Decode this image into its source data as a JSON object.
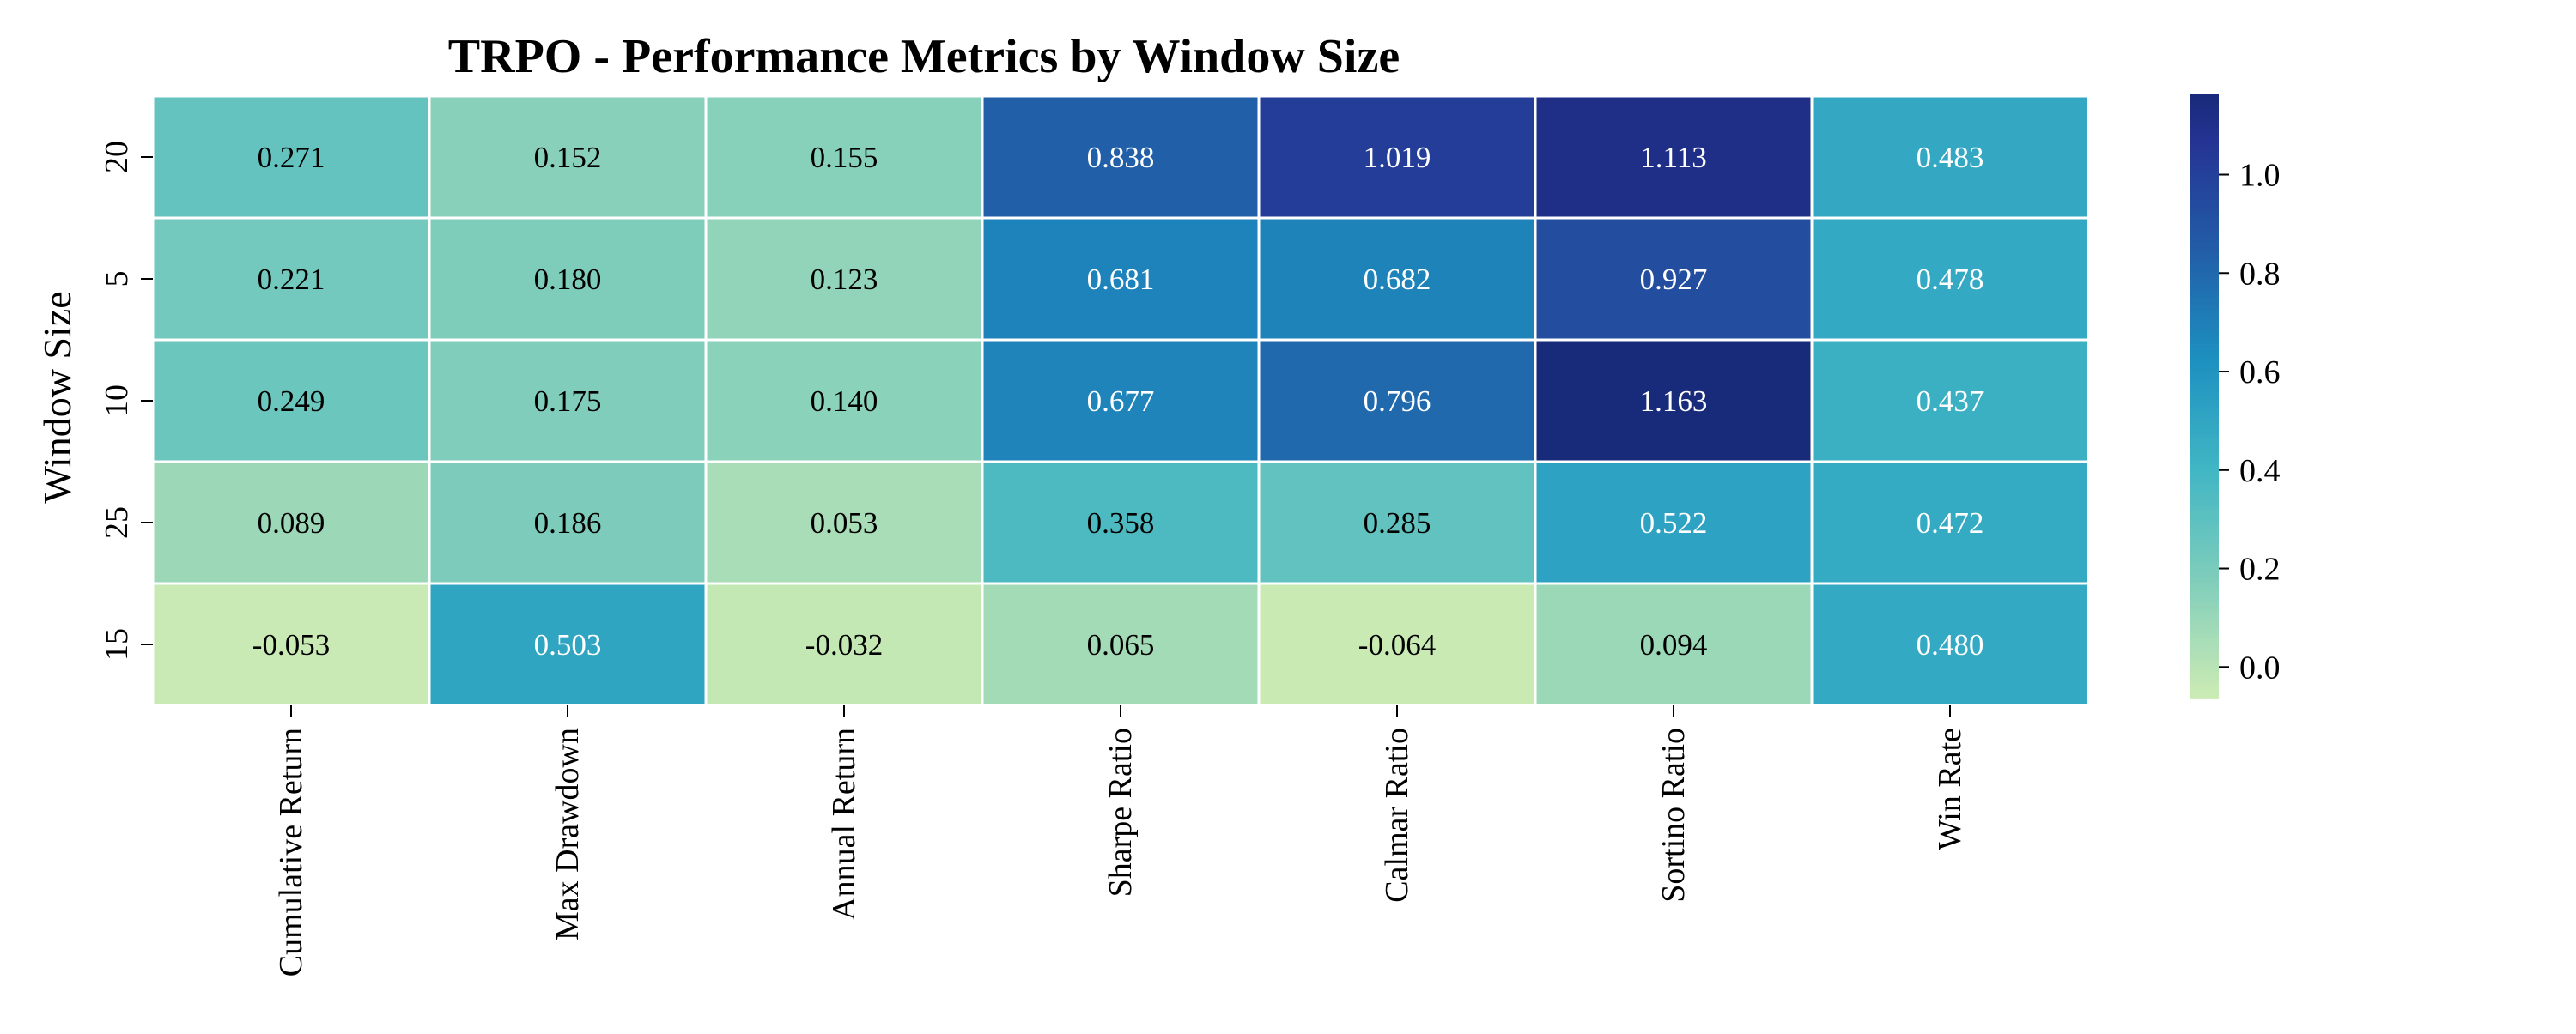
{
  "chart_data": {
    "type": "heatmap",
    "title": "TRPO - Performance Metrics by Window Size",
    "ylabel": "Window Size",
    "xlabel": "",
    "x_categories": [
      "Cumulative Return",
      "Max Drawdown",
      "Annual Return",
      "Sharpe Ratio",
      "Calmar Ratio",
      "Sortino Ratio",
      "Win Rate"
    ],
    "y_categories": [
      "20",
      "5",
      "10",
      "25",
      "15"
    ],
    "values": [
      [
        0.271,
        0.152,
        0.155,
        0.838,
        1.019,
        1.113,
        0.483
      ],
      [
        0.221,
        0.18,
        0.123,
        0.681,
        0.682,
        0.927,
        0.478
      ],
      [
        0.249,
        0.175,
        0.14,
        0.677,
        0.796,
        1.163,
        0.437
      ],
      [
        0.089,
        0.186,
        0.053,
        0.358,
        0.285,
        0.522,
        0.472
      ],
      [
        -0.053,
        0.503,
        -0.032,
        0.065,
        -0.064,
        0.094,
        0.48
      ]
    ],
    "cell_labels": [
      [
        "0.271",
        "0.152",
        "0.155",
        "0.838",
        "1.019",
        "1.113",
        "0.483"
      ],
      [
        "0.221",
        "0.180",
        "0.123",
        "0.681",
        "0.682",
        "0.927",
        "0.478"
      ],
      [
        "0.249",
        "0.175",
        "0.140",
        "0.677",
        "0.796",
        "1.163",
        "0.437"
      ],
      [
        "0.089",
        "0.186",
        "0.053",
        "0.358",
        "0.285",
        "0.522",
        "0.472"
      ],
      [
        "-0.053",
        "0.503",
        "-0.032",
        "0.065",
        "-0.064",
        "0.094",
        "0.480"
      ]
    ],
    "colormap": "YlGnBu",
    "color_range": [
      -0.064,
      1.163
    ],
    "colorbar": {
      "ticks": [
        0.0,
        0.2,
        0.4,
        0.6,
        0.8,
        1.0
      ],
      "tick_labels": [
        "0.0",
        "0.2",
        "0.4",
        "0.6",
        "0.8",
        "1.0"
      ]
    },
    "grid_lines_color": "#ffffff",
    "annotation_colors": {
      "light": "#ffffff",
      "dark": "#000000"
    }
  }
}
